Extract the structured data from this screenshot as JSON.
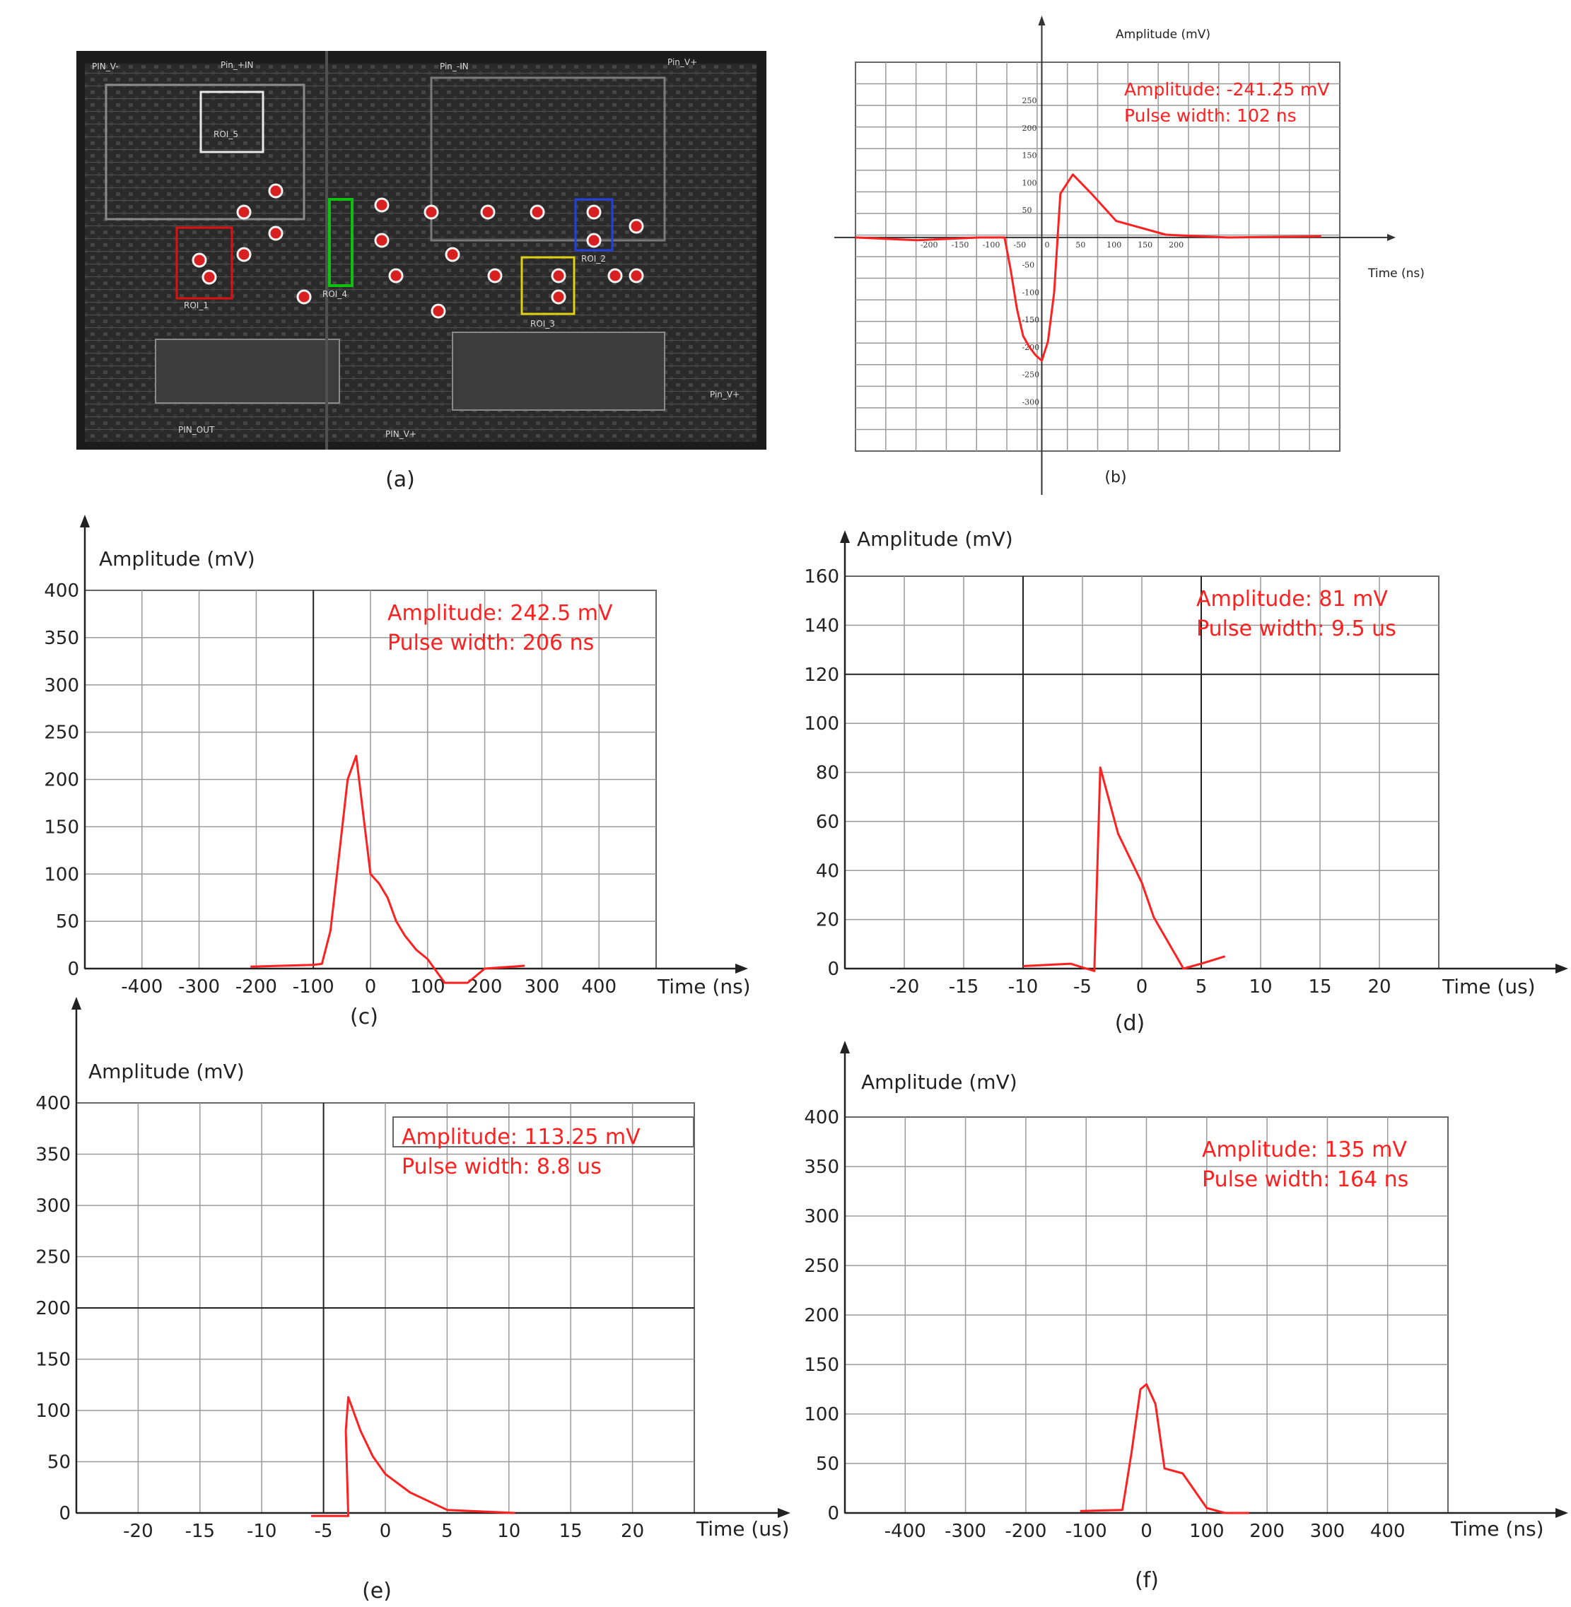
{
  "panel_a": {
    "caption": "(a)",
    "pin_labels": [
      "PIN_V-",
      "Pin_+IN",
      "Pin_-IN",
      "Pin_V+",
      "PIN_OUT",
      "PIN_V+",
      "Pin_V+"
    ],
    "roi_labels": [
      {
        "text": "ROI_5",
        "color": "#e8e8e8"
      },
      {
        "text": "ROI_1",
        "color": "#e01010"
      },
      {
        "text": "ROI_4",
        "color": "#10c010"
      },
      {
        "text": "ROI_3",
        "color": "#e0d010"
      },
      {
        "text": "ROI_2",
        "color": "#2040e0"
      }
    ]
  },
  "chart_data": [
    {
      "panel": "b",
      "caption": "(b)",
      "type": "line",
      "xlabel": "Time (ns)",
      "ylabel": "Amplitude (mV)",
      "annotations": [
        "Amplitude: -241.25 mV",
        "Pulse width: 102 ns"
      ],
      "x_ticks": [
        "-200",
        "-150",
        "-100",
        "-50",
        "0",
        "50",
        "100",
        "150",
        "200"
      ],
      "y_ticks": [
        "250",
        "200",
        "150",
        "100",
        "50",
        "-50",
        "-100",
        "-150",
        "-200",
        "-250",
        "-300"
      ],
      "series": [
        {
          "x": [
            -300,
            -200,
            -100,
            -60,
            -50,
            -40,
            -30,
            -20,
            -10,
            0,
            10,
            20,
            30,
            50,
            80,
            120,
            200,
            300,
            450
          ],
          "y": [
            0,
            -5,
            0,
            0,
            -60,
            -130,
            -180,
            -200,
            -215,
            -225,
            -190,
            -100,
            80,
            115,
            80,
            30,
            5,
            0,
            2
          ]
        }
      ],
      "line_color": "#ff2020",
      "grid": true
    },
    {
      "panel": "c",
      "caption": "(c)",
      "type": "line",
      "xlabel": "Time (ns)",
      "ylabel": "Amplitude (mV)",
      "annotations": [
        "Amplitude: 242.5 mV",
        "Pulse width: 206 ns"
      ],
      "x_ticks": [
        "-400",
        "-300",
        "-200",
        "-100",
        "0",
        "100",
        "200",
        "300",
        "400"
      ],
      "y_ticks": [
        "0",
        "50",
        "100",
        "150",
        "200",
        "250",
        "300",
        "350",
        "400"
      ],
      "series": [
        {
          "x": [
            -210,
            -100,
            -85,
            -70,
            -55,
            -40,
            -25,
            -10,
            0,
            15,
            30,
            45,
            60,
            80,
            100,
            130,
            150,
            170,
            200,
            270
          ],
          "y": [
            2,
            4,
            5,
            40,
            120,
            200,
            225,
            150,
            100,
            90,
            75,
            50,
            35,
            20,
            10,
            -15,
            -15,
            -15,
            0,
            3
          ]
        }
      ],
      "line_color": "#ff2020",
      "grid": true
    },
    {
      "panel": "d",
      "caption": "(d)",
      "type": "line",
      "xlabel": "Time (us)",
      "ylabel": "Amplitude (mV)",
      "annotations": [
        "Amplitude: 81 mV",
        "Pulse width: 9.5 us"
      ],
      "x_ticks": [
        "-20",
        "-15",
        "-10",
        "-5",
        "0",
        "5",
        "10",
        "15",
        "20"
      ],
      "y_ticks": [
        "0",
        "20",
        "40",
        "60",
        "80",
        "100",
        "120",
        "140",
        "160"
      ],
      "series": [
        {
          "x": [
            -10,
            -6,
            -4,
            -3.5,
            -2,
            0,
            1,
            3.5,
            5,
            7
          ],
          "y": [
            1,
            2,
            -1,
            82,
            55,
            35,
            21,
            0,
            2,
            5
          ]
        }
      ],
      "line_color": "#ff2020",
      "grid": true
    },
    {
      "panel": "e",
      "caption": "(e)",
      "type": "line",
      "xlabel": "Time (us)",
      "ylabel": "Amplitude (mV)",
      "annotations": [
        "Amplitude: 113.25 mV",
        "Pulse width: 8.8 us"
      ],
      "x_ticks": [
        "-20",
        "-15",
        "-10",
        "-5",
        "0",
        "5",
        "10",
        "15",
        "20"
      ],
      "y_ticks": [
        "0",
        "50",
        "100",
        "150",
        "200",
        "250",
        "300",
        "350",
        "400"
      ],
      "series": [
        {
          "x": [
            -6,
            -3,
            -3.2,
            -3,
            -2,
            -1,
            0,
            2,
            5,
            10.5
          ],
          "y": [
            -3,
            -3,
            80,
            113,
            80,
            55,
            38,
            20,
            3,
            0
          ]
        }
      ],
      "line_color": "#ff2020",
      "grid": true
    },
    {
      "panel": "f",
      "caption": "(f)",
      "type": "line",
      "xlabel": "Time (ns)",
      "ylabel": "Amplitude (mV)",
      "annotations": [
        "Amplitude: 135 mV",
        "Pulse width: 164 ns"
      ],
      "x_ticks": [
        "-400",
        "-300",
        "-200",
        "-100",
        "0",
        "100",
        "200",
        "300",
        "400"
      ],
      "y_ticks": [
        "0",
        "50",
        "100",
        "150",
        "200",
        "250",
        "300",
        "350",
        "400"
      ],
      "series": [
        {
          "x": [
            -110,
            -40,
            -25,
            -10,
            0,
            15,
            30,
            60,
            100,
            130,
            170
          ],
          "y": [
            2,
            3,
            60,
            125,
            130,
            110,
            45,
            40,
            5,
            0,
            0
          ]
        }
      ],
      "line_color": "#ff2020",
      "grid": true
    }
  ]
}
